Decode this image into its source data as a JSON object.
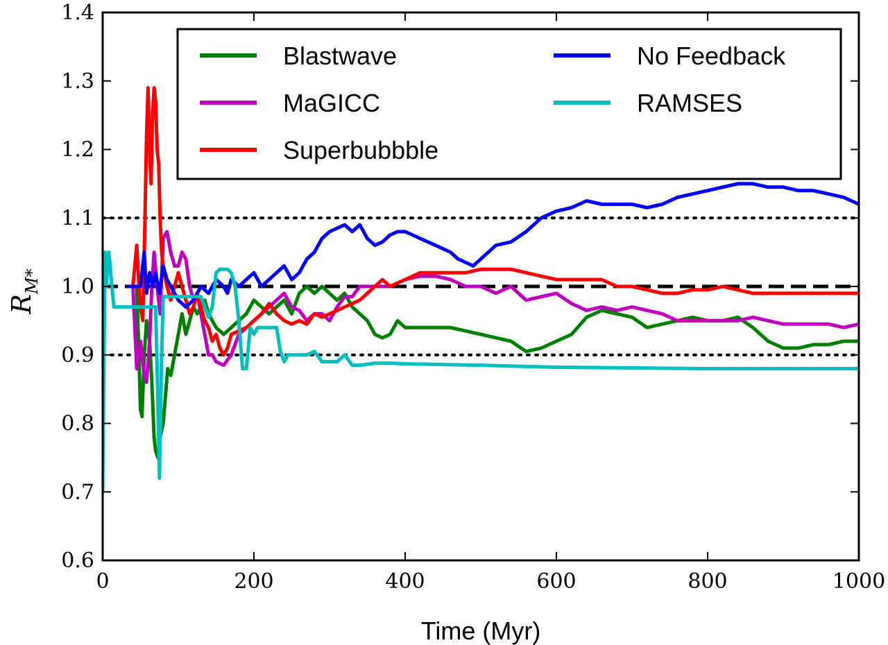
{
  "chart_data": {
    "type": "line",
    "title": "",
    "xlabel": "Time (Myr)",
    "ylabel": "R",
    "ylabel_subscript": "M*",
    "xlim": [
      0,
      1000
    ],
    "ylim": [
      0.6,
      1.4
    ],
    "xticks": [
      0,
      200,
      400,
      600,
      800,
      1000
    ],
    "xtick_labels": [
      "0",
      "200",
      "400",
      "600",
      "800",
      "1000"
    ],
    "yticks": [
      0.6,
      0.7,
      0.8,
      0.9,
      1.0,
      1.1,
      1.2,
      1.3,
      1.4
    ],
    "ytick_labels": [
      "0.6",
      "0.7",
      "0.8",
      "0.9",
      "1.0",
      "1.1",
      "1.2",
      "1.3",
      "1.4"
    ],
    "grid": false,
    "legend_position": "top-right",
    "reference_lines": [
      {
        "name": "unity",
        "y": 1.0,
        "style": "dashed",
        "color": "#000000"
      },
      {
        "name": "upper-10pct",
        "y": 1.1,
        "style": "dotted",
        "color": "#000000"
      },
      {
        "name": "lower-10pct",
        "y": 0.9,
        "style": "dotted",
        "color": "#000000"
      }
    ],
    "series": [
      {
        "name": "Blastwave",
        "color": "#008000",
        "x": [
          45,
          48,
          50,
          52,
          55,
          58,
          62,
          65,
          68,
          70,
          73,
          76,
          80,
          83,
          86,
          90,
          95,
          100,
          105,
          110,
          115,
          120,
          125,
          130,
          135,
          140,
          145,
          150,
          160,
          170,
          180,
          190,
          200,
          210,
          220,
          230,
          240,
          250,
          260,
          270,
          280,
          290,
          300,
          310,
          320,
          330,
          340,
          350,
          360,
          370,
          380,
          390,
          400,
          420,
          440,
          460,
          480,
          500,
          520,
          540,
          560,
          580,
          600,
          620,
          640,
          660,
          680,
          700,
          720,
          740,
          760,
          780,
          800,
          820,
          840,
          860,
          880,
          900,
          920,
          940,
          960,
          980,
          1000
        ],
        "y": [
          1.0,
          0.9,
          0.82,
          0.81,
          0.9,
          0.95,
          0.92,
          0.86,
          0.78,
          0.76,
          0.75,
          0.78,
          0.8,
          0.84,
          0.88,
          0.87,
          0.9,
          0.93,
          0.96,
          0.93,
          0.95,
          0.97,
          0.96,
          0.97,
          0.98,
          0.96,
          0.95,
          0.94,
          0.93,
          0.94,
          0.95,
          0.96,
          0.98,
          0.97,
          0.96,
          0.97,
          0.98,
          0.96,
          0.99,
          1.0,
          0.99,
          1.0,
          0.99,
          0.98,
          0.99,
          0.97,
          0.96,
          0.95,
          0.93,
          0.925,
          0.93,
          0.95,
          0.94,
          0.94,
          0.94,
          0.94,
          0.935,
          0.93,
          0.925,
          0.92,
          0.905,
          0.91,
          0.92,
          0.93,
          0.955,
          0.965,
          0.96,
          0.955,
          0.94,
          0.945,
          0.95,
          0.955,
          0.95,
          0.95,
          0.955,
          0.94,
          0.92,
          0.91,
          0.91,
          0.915,
          0.915,
          0.92,
          0.92
        ]
      },
      {
        "name": "MaGICC",
        "color": "#bf00bf",
        "x": [
          40,
          45,
          50,
          55,
          58,
          62,
          65,
          68,
          72,
          76,
          80,
          85,
          90,
          95,
          100,
          105,
          110,
          115,
          120,
          125,
          130,
          135,
          140,
          145,
          150,
          160,
          170,
          180,
          190,
          200,
          210,
          220,
          230,
          240,
          250,
          260,
          270,
          280,
          290,
          300,
          310,
          320,
          330,
          340,
          350,
          360,
          380,
          400,
          420,
          440,
          460,
          480,
          500,
          520,
          540,
          560,
          580,
          600,
          620,
          640,
          660,
          680,
          700,
          720,
          740,
          760,
          780,
          800,
          820,
          840,
          860,
          880,
          900,
          920,
          940,
          960,
          980,
          1000
        ],
        "y": [
          1.0,
          0.88,
          0.92,
          0.87,
          0.86,
          0.92,
          1.0,
          1.05,
          1.0,
          0.96,
          1.07,
          1.08,
          1.05,
          1.03,
          1.03,
          1.05,
          1.04,
          1.0,
          0.98,
          0.99,
          0.96,
          0.93,
          0.9,
          0.9,
          0.89,
          0.885,
          0.9,
          0.93,
          0.94,
          0.95,
          0.96,
          0.97,
          0.98,
          0.99,
          0.97,
          0.965,
          0.95,
          0.96,
          0.96,
          0.95,
          0.97,
          0.985,
          0.985,
          1.0,
          1.0,
          1.0,
          1.0,
          1.01,
          1.015,
          1.015,
          1.01,
          1.0,
          1.0,
          0.99,
          1.0,
          0.98,
          0.985,
          0.99,
          0.975,
          0.965,
          0.97,
          0.965,
          0.97,
          0.965,
          0.96,
          0.95,
          0.95,
          0.95,
          0.95,
          0.95,
          0.955,
          0.95,
          0.945,
          0.945,
          0.945,
          0.945,
          0.94,
          0.945
        ]
      },
      {
        "name": "Superbubbble",
        "color": "#ff0000",
        "x": [
          40,
          45,
          48,
          50,
          53,
          56,
          58,
          60,
          62,
          64,
          66,
          68,
          70,
          72,
          74,
          76,
          78,
          80,
          85,
          90,
          95,
          100,
          105,
          110,
          115,
          120,
          125,
          130,
          135,
          140,
          145,
          150,
          155,
          160,
          165,
          170,
          180,
          190,
          200,
          210,
          220,
          230,
          240,
          250,
          260,
          270,
          280,
          290,
          300,
          310,
          320,
          330,
          340,
          350,
          360,
          370,
          380,
          400,
          420,
          440,
          460,
          480,
          500,
          520,
          540,
          560,
          580,
          600,
          620,
          640,
          660,
          680,
          700,
          720,
          740,
          760,
          780,
          800,
          820,
          840,
          860,
          880,
          900,
          920,
          940,
          960,
          980,
          1000
        ],
        "y": [
          1.0,
          1.06,
          1.0,
          0.97,
          0.95,
          1.1,
          1.22,
          1.29,
          1.2,
          1.15,
          1.25,
          1.29,
          1.27,
          1.2,
          1.18,
          1.1,
          1.05,
          1.03,
          1.0,
          0.98,
          1.0,
          1.02,
          1.0,
          0.98,
          0.96,
          0.97,
          0.99,
          0.97,
          0.95,
          0.94,
          0.92,
          0.93,
          0.91,
          0.9,
          0.91,
          0.93,
          0.935,
          0.94,
          0.95,
          0.96,
          0.975,
          0.96,
          0.95,
          0.945,
          0.95,
          0.945,
          0.96,
          0.955,
          0.96,
          0.965,
          0.97,
          0.975,
          0.98,
          0.99,
          1.0,
          1.01,
          1.0,
          1.01,
          1.02,
          1.02,
          1.02,
          1.02,
          1.025,
          1.025,
          1.025,
          1.02,
          1.015,
          1.01,
          1.01,
          1.01,
          1.01,
          1.0,
          1.0,
          0.995,
          0.99,
          0.99,
          0.995,
          0.995,
          1.0,
          0.995,
          0.99,
          0.99,
          0.99,
          0.99,
          0.99,
          0.99,
          0.99,
          0.99
        ]
      },
      {
        "name": "No Feedback",
        "color": "#0000ff",
        "x": [
          35,
          40,
          45,
          50,
          55,
          58,
          62,
          66,
          70,
          75,
          80,
          85,
          90,
          95,
          100,
          110,
          120,
          130,
          140,
          150,
          160,
          165,
          170,
          180,
          190,
          200,
          210,
          220,
          230,
          240,
          250,
          260,
          270,
          280,
          290,
          300,
          310,
          320,
          330,
          340,
          350,
          360,
          370,
          380,
          390,
          400,
          410,
          420,
          430,
          440,
          450,
          460,
          470,
          480,
          490,
          500,
          520,
          540,
          560,
          580,
          600,
          620,
          640,
          660,
          680,
          700,
          720,
          740,
          760,
          780,
          800,
          820,
          840,
          860,
          880,
          900,
          920,
          940,
          960,
          980,
          1000
        ],
        "y": [
          1.0,
          1.0,
          1.0,
          1.0,
          1.05,
          0.99,
          1.02,
          1.0,
          1.02,
          0.99,
          1.03,
          1.01,
          1.0,
          0.99,
          0.98,
          0.97,
          0.98,
          1.0,
          0.99,
          1.01,
          1.0,
          0.99,
          1.01,
          1.0,
          1.01,
          1.02,
          1.0,
          1.01,
          1.02,
          1.03,
          1.01,
          1.02,
          1.04,
          1.05,
          1.07,
          1.08,
          1.085,
          1.09,
          1.08,
          1.09,
          1.07,
          1.06,
          1.065,
          1.075,
          1.08,
          1.08,
          1.075,
          1.07,
          1.065,
          1.06,
          1.055,
          1.05,
          1.04,
          1.035,
          1.03,
          1.04,
          1.06,
          1.065,
          1.08,
          1.1,
          1.11,
          1.115,
          1.125,
          1.12,
          1.12,
          1.12,
          1.115,
          1.12,
          1.13,
          1.135,
          1.14,
          1.145,
          1.15,
          1.15,
          1.145,
          1.145,
          1.14,
          1.14,
          1.135,
          1.13,
          1.12
        ]
      },
      {
        "name": "RAMSES",
        "color": "#00bfbf",
        "x": [
          0,
          3,
          5,
          8,
          10,
          12,
          15,
          20,
          30,
          40,
          50,
          60,
          70,
          72,
          75,
          78,
          80,
          85,
          90,
          100,
          110,
          120,
          130,
          135,
          140,
          145,
          150,
          155,
          160,
          165,
          170,
          175,
          180,
          185,
          190,
          195,
          200,
          205,
          210,
          220,
          230,
          235,
          240,
          245,
          250,
          260,
          270,
          280,
          290,
          300,
          310,
          320,
          330,
          340,
          360,
          380,
          400,
          450,
          500,
          600,
          700,
          800,
          900,
          1000
        ],
        "y": [
          0.7,
          1.05,
          1.0,
          1.05,
          1.03,
          1.0,
          0.97,
          0.97,
          0.97,
          0.97,
          0.97,
          0.97,
          0.97,
          0.88,
          0.72,
          0.9,
          0.985,
          0.985,
          0.985,
          0.985,
          0.985,
          0.985,
          0.985,
          0.97,
          0.955,
          0.97,
          1.02,
          1.025,
          1.025,
          1.025,
          1.02,
          1.0,
          0.95,
          0.88,
          0.88,
          0.94,
          0.93,
          0.94,
          0.94,
          0.94,
          0.94,
          0.905,
          0.89,
          0.9,
          0.9,
          0.9,
          0.9,
          0.905,
          0.89,
          0.89,
          0.89,
          0.9,
          0.885,
          0.885,
          0.888,
          0.888,
          0.887,
          0.886,
          0.885,
          0.882,
          0.881,
          0.88,
          0.88,
          0.88
        ]
      }
    ]
  }
}
